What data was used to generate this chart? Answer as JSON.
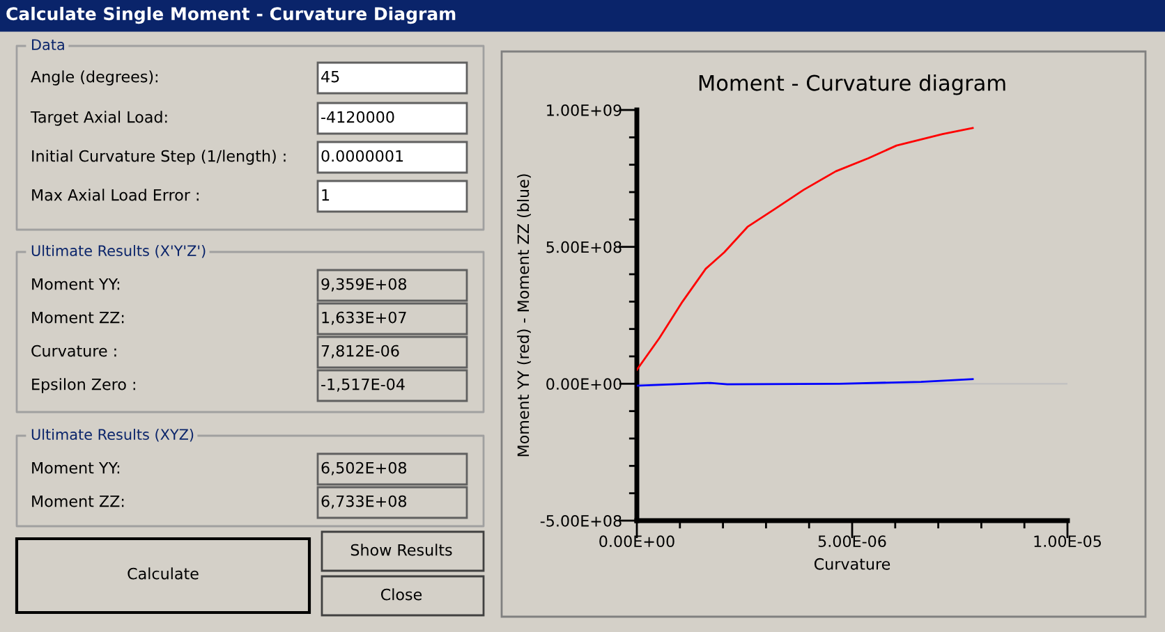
{
  "chart_data": [
    {
      "type": "other",
      "title": "Calculate Single Moment - Curvature Diagram",
      "annotations": [
        "Data",
        "Angle (degrees):",
        "45",
        "Target Axial Load:",
        "-4120000",
        "Initial Curvature Step (1/length) :",
        "0.0000001",
        "Max Axial Load Error :",
        "1",
        "Ultimate Results (X'Y'Z')",
        "Moment YY:",
        "9,359E+08",
        "Moment ZZ:",
        "1,633E+07",
        "Curvature :",
        "7,812E-06",
        "Epsilon Zero :",
        "-1,517E-04",
        "Ultimate Results (XYZ)",
        "Moment YY:",
        "6,502E+08",
        "Moment ZZ:",
        "6,733E+08",
        "Calculate",
        "Show Results",
        "Close"
      ]
    },
    {
      "type": "line",
      "title": "Moment - Curvature diagram",
      "xlabel": "Curvature",
      "ylabel": "Moment YY (red) - Moment ZZ (blue)",
      "series": [
        {
          "color": "#ff0000",
          "x": [
            0,
            5.2e-07,
            1.06e-06,
            1.6e-06,
            2.03e-06,
            2.57e-06,
            3.22e-06,
            3.87e-06,
            4.62e-06,
            5.38e-06,
            6.03e-06,
            7.1e-06,
            7.8e-06
          ],
          "values": [
            51000000.0,
            166000000.0,
            300000000.0,
            420000000.0,
            480000000.0,
            573000000.0,
            640000000.0,
            708000000.0,
            776000000.0,
            824000000.0,
            870000000.0,
            912000000.0,
            934000000.0
          ]
        },
        {
          "color": "#0000ff",
          "x": [
            0,
            1.7e-06,
            2.1e-06,
            4.7e-06,
            6.6e-06,
            7.8e-06
          ],
          "values": [
            -7000000.0,
            3000000.0,
            -2000000.0,
            0,
            7000000.0,
            17000000.0
          ]
        }
      ],
      "ref_lines": [
        {
          "axis": "y",
          "value": 0,
          "color": "#c0c0c0"
        }
      ],
      "xlim": [
        0,
        1e-05
      ],
      "ylim": [
        -500000000.0,
        1000000000.0
      ],
      "xticks": [
        {
          "value": 0,
          "label": "0.00E+00"
        },
        {
          "value": 1e-06,
          "label": null
        },
        {
          "value": 2e-06,
          "label": null
        },
        {
          "value": 3e-06,
          "label": null
        },
        {
          "value": 4e-06,
          "label": null
        },
        {
          "value": 5e-06,
          "label": "5.00E-06"
        },
        {
          "value": 6e-06,
          "label": null
        },
        {
          "value": 7e-06,
          "label": null
        },
        {
          "value": 8e-06,
          "label": null
        },
        {
          "value": 9e-06,
          "label": null
        },
        {
          "value": 1e-05,
          "label": "1.00E-05"
        }
      ],
      "yticks": [
        {
          "value": -500000000.0,
          "label": "-5.00E+08"
        },
        {
          "value": -400000000.0,
          "label": null
        },
        {
          "value": -300000000.0,
          "label": null
        },
        {
          "value": -200000000.0,
          "label": null
        },
        {
          "value": -100000000.0,
          "label": null
        },
        {
          "value": 0,
          "label": "0.00E+00"
        },
        {
          "value": 100000000.0,
          "label": null
        },
        {
          "value": 200000000.0,
          "label": null
        },
        {
          "value": 300000000.0,
          "label": null
        },
        {
          "value": 400000000.0,
          "label": null
        },
        {
          "value": 500000000.0,
          "label": "5.00E+08"
        },
        {
          "value": 600000000.0,
          "label": null
        },
        {
          "value": 700000000.0,
          "label": null
        },
        {
          "value": 800000000.0,
          "label": null
        },
        {
          "value": 900000000.0,
          "label": null
        },
        {
          "value": 1000000000.0,
          "label": "1.00E+09"
        }
      ],
      "grid": false,
      "marker": "none",
      "line_style": "solid"
    }
  ]
}
